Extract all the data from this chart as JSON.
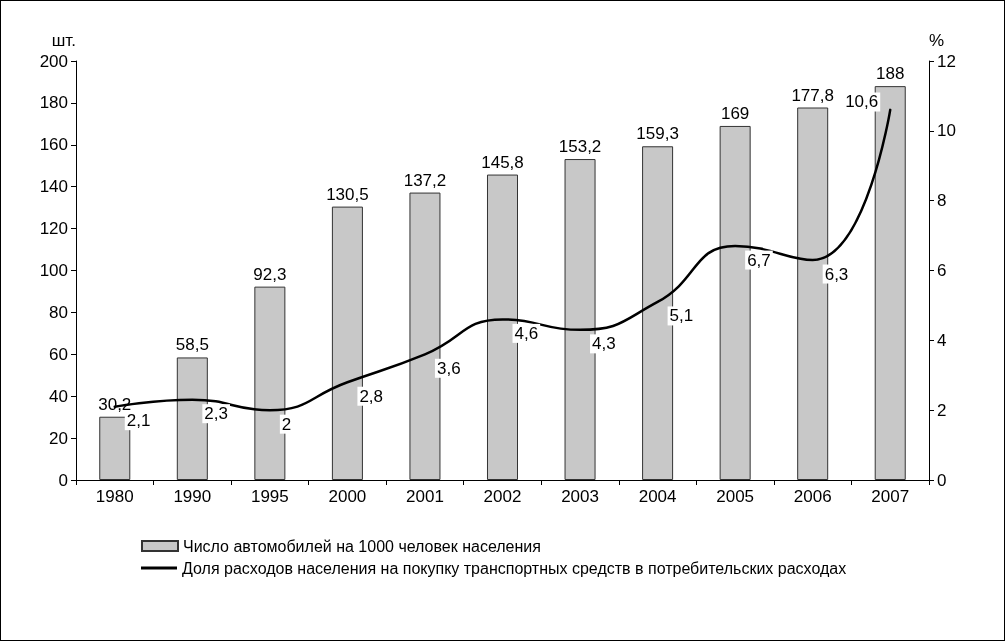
{
  "chart_data": {
    "type": "bar",
    "categories": [
      "1980",
      "1990",
      "1995",
      "2000",
      "2001",
      "2002",
      "2003",
      "2004",
      "2005",
      "2006",
      "2007"
    ],
    "ylabel": "шт.",
    "y2label": "%",
    "ylim": [
      0,
      200
    ],
    "yticks": [
      0,
      20,
      40,
      60,
      80,
      100,
      120,
      140,
      160,
      180,
      200
    ],
    "y2lim": [
      0,
      12
    ],
    "y2ticks": [
      0,
      2,
      4,
      6,
      8,
      10,
      12
    ],
    "grid": false,
    "legend": "bottom left",
    "marker": "none",
    "line_style": "solid",
    "series": [
      {
        "name": "Число автомобилей на 1000 человек населения",
        "color": "#c8c8c8",
        "values": [
          30.2,
          58.5,
          92.3,
          130.5,
          137.2,
          145.8,
          153.2,
          159.3,
          169,
          177.8,
          188
        ],
        "value_labels": [
          "30,2",
          "58,5",
          "92,3",
          "130,5",
          "137,2",
          "145,8",
          "153,2",
          "159,3",
          "169",
          "177,8",
          "188"
        ]
      },
      {
        "name": "Доля расходов населения на покупку транспортных средств в потребительских расходах",
        "type": "line",
        "axis": "y2",
        "color": "#000000",
        "values": [
          2.1,
          2.3,
          2,
          2.8,
          3.6,
          4.6,
          4.3,
          5.1,
          6.7,
          6.3,
          10.6
        ],
        "value_labels": [
          "2,1",
          "2,3",
          "2",
          "2,8",
          "3,6",
          "4,6",
          "4,3",
          "5,1",
          "6,7",
          "6,3",
          "10,6"
        ]
      }
    ]
  }
}
